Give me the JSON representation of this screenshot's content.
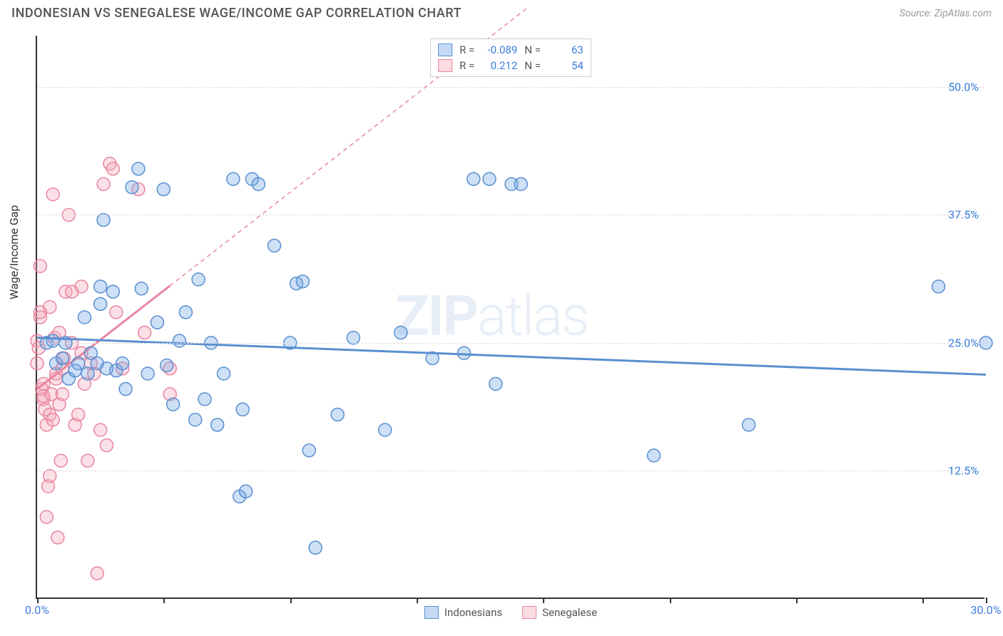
{
  "title": "INDONESIAN VS SENEGALESE WAGE/INCOME GAP CORRELATION CHART",
  "source": "Source: ZipAtlas.com",
  "watermark": {
    "bold": "ZIP",
    "light": "atlas"
  },
  "chart": {
    "type": "scatter",
    "y_axis_label": "Wage/Income Gap",
    "xlim": [
      0,
      30
    ],
    "ylim": [
      0,
      55
    ],
    "x_ticks": [
      0,
      4,
      8,
      12,
      16,
      20,
      24,
      28,
      30
    ],
    "x_tick_labels": {
      "0": "0.0%",
      "30": "30.0%"
    },
    "y_ticks": [
      12.5,
      25.0,
      37.5,
      50.0
    ],
    "y_tick_labels": [
      "12.5%",
      "25.0%",
      "37.5%",
      "50.0%"
    ],
    "gridline_color": "#dddddd",
    "background_color": "#ffffff",
    "marker_radius": 9,
    "marker_stroke_width": 1.5,
    "marker_fill_opacity": 0.35,
    "series": [
      {
        "name": "Indonesians",
        "color": "#6fa5e6",
        "stroke": "#5a8fd0",
        "trend": {
          "slope": -0.12,
          "intercept": 25.5,
          "x0": 0,
          "x1": 30
        },
        "correlation": {
          "r": "-0.089",
          "n": "63"
        },
        "points": [
          [
            0.3,
            25.0
          ],
          [
            0.5,
            25.2
          ],
          [
            0.6,
            23.0
          ],
          [
            0.8,
            23.5
          ],
          [
            0.9,
            25.0
          ],
          [
            1.0,
            21.5
          ],
          [
            1.2,
            22.3
          ],
          [
            1.3,
            23.0
          ],
          [
            1.5,
            27.5
          ],
          [
            1.6,
            22.0
          ],
          [
            1.7,
            24.0
          ],
          [
            1.9,
            23.0
          ],
          [
            2.0,
            28.8
          ],
          [
            2.1,
            37.0
          ],
          [
            2.2,
            22.5
          ],
          [
            2.4,
            30.0
          ],
          [
            2.5,
            22.3
          ],
          [
            2.7,
            23.0
          ],
          [
            2.8,
            20.5
          ],
          [
            3.0,
            40.2
          ],
          [
            3.2,
            42.0
          ],
          [
            3.3,
            30.3
          ],
          [
            3.5,
            22.0
          ],
          [
            4.0,
            40.0
          ],
          [
            4.1,
            22.8
          ],
          [
            4.3,
            19.0
          ],
          [
            4.5,
            25.2
          ],
          [
            5.0,
            17.5
          ],
          [
            5.1,
            31.2
          ],
          [
            5.3,
            19.5
          ],
          [
            5.5,
            25.0
          ],
          [
            5.7,
            17.0
          ],
          [
            5.9,
            22.0
          ],
          [
            6.2,
            41.0
          ],
          [
            6.4,
            10.0
          ],
          [
            6.6,
            10.5
          ],
          [
            6.8,
            41.0
          ],
          [
            7.0,
            40.5
          ],
          [
            7.5,
            34.5
          ],
          [
            8.0,
            25.0
          ],
          [
            8.2,
            30.8
          ],
          [
            8.4,
            31.0
          ],
          [
            8.6,
            14.5
          ],
          [
            8.8,
            5.0
          ],
          [
            10.0,
            25.5
          ],
          [
            11.0,
            16.5
          ],
          [
            11.5,
            26.0
          ],
          [
            12.5,
            23.5
          ],
          [
            13.5,
            24.0
          ],
          [
            13.8,
            41.0
          ],
          [
            14.3,
            41.0
          ],
          [
            14.5,
            21.0
          ],
          [
            15.0,
            40.5
          ],
          [
            15.3,
            40.5
          ],
          [
            19.5,
            14.0
          ],
          [
            22.5,
            17.0
          ],
          [
            28.5,
            30.5
          ],
          [
            30.0,
            25.0
          ],
          [
            3.8,
            27.0
          ],
          [
            4.7,
            28.0
          ],
          [
            2.0,
            30.5
          ],
          [
            6.5,
            18.5
          ],
          [
            9.5,
            18.0
          ]
        ]
      },
      {
        "name": "Senegalese",
        "color": "#f4a7b9",
        "stroke": "#e986a0",
        "trend": {
          "slope": 2.4,
          "intercept": 20.5,
          "x0": 0,
          "x1": 4.2,
          "dash_x1": 15.5
        },
        "correlation": {
          "r": "0.212",
          "n": "54"
        },
        "points": [
          [
            0.0,
            23.0
          ],
          [
            0.0,
            25.2
          ],
          [
            0.05,
            24.5
          ],
          [
            0.1,
            27.5
          ],
          [
            0.1,
            28.0
          ],
          [
            0.1,
            32.5
          ],
          [
            0.15,
            20.5
          ],
          [
            0.2,
            19.5
          ],
          [
            0.2,
            19.8
          ],
          [
            0.2,
            21.0
          ],
          [
            0.25,
            18.5
          ],
          [
            0.3,
            8.0
          ],
          [
            0.3,
            17.0
          ],
          [
            0.35,
            11.0
          ],
          [
            0.4,
            12.0
          ],
          [
            0.4,
            18.0
          ],
          [
            0.4,
            28.5
          ],
          [
            0.45,
            20.0
          ],
          [
            0.5,
            17.5
          ],
          [
            0.5,
            39.5
          ],
          [
            0.55,
            25.5
          ],
          [
            0.6,
            21.5
          ],
          [
            0.6,
            22.0
          ],
          [
            0.65,
            6.0
          ],
          [
            0.7,
            19.0
          ],
          [
            0.7,
            26.0
          ],
          [
            0.75,
            13.5
          ],
          [
            0.8,
            20.0
          ],
          [
            0.8,
            22.5
          ],
          [
            0.85,
            23.5
          ],
          [
            0.9,
            30.0
          ],
          [
            1.0,
            37.5
          ],
          [
            1.1,
            25.0
          ],
          [
            1.1,
            30.0
          ],
          [
            1.2,
            17.0
          ],
          [
            1.3,
            18.0
          ],
          [
            1.4,
            24.0
          ],
          [
            1.4,
            30.5
          ],
          [
            1.5,
            21.0
          ],
          [
            1.6,
            13.5
          ],
          [
            1.7,
            23.0
          ],
          [
            1.8,
            22.0
          ],
          [
            1.9,
            2.5
          ],
          [
            2.0,
            16.5
          ],
          [
            2.1,
            40.5
          ],
          [
            2.2,
            15.0
          ],
          [
            2.3,
            42.5
          ],
          [
            2.4,
            42.0
          ],
          [
            2.5,
            28.0
          ],
          [
            2.7,
            22.5
          ],
          [
            3.2,
            40.0
          ],
          [
            3.4,
            26.0
          ],
          [
            4.2,
            20.0
          ],
          [
            4.2,
            22.5
          ]
        ]
      }
    ]
  },
  "legend_bottom": [
    {
      "label": "Indonesians",
      "color": "#6fa5e6",
      "stroke": "#5a8fd0"
    },
    {
      "label": "Senegalese",
      "color": "#f4a7b9",
      "stroke": "#e986a0"
    }
  ]
}
